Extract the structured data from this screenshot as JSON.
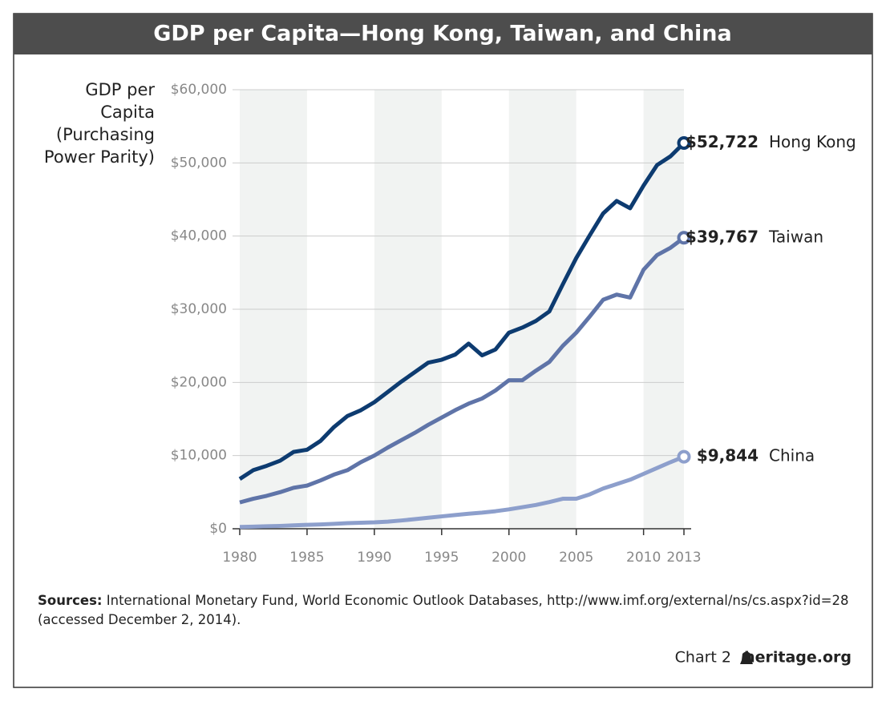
{
  "chart_data": {
    "type": "line",
    "title": "GDP per Capita—Hong Kong, Taiwan, and China",
    "ylabel": [
      "GDP per",
      "Capita",
      "(Purchasing",
      "Power Parity)"
    ],
    "x": [
      1980,
      1981,
      1982,
      1983,
      1984,
      1985,
      1986,
      1987,
      1988,
      1989,
      1990,
      1991,
      1992,
      1993,
      1994,
      1995,
      1996,
      1997,
      1998,
      1999,
      2000,
      2001,
      2002,
      2003,
      2004,
      2005,
      2006,
      2007,
      2008,
      2009,
      2010,
      2011,
      2012,
      2013
    ],
    "xlim": [
      1980,
      2013
    ],
    "xticks": [
      1980,
      1985,
      1990,
      1995,
      2000,
      2005,
      2010,
      2013
    ],
    "ylim": [
      0,
      60000
    ],
    "yticks": [
      {
        "value": 0,
        "label": "$0"
      },
      {
        "value": 10000,
        "label": "$10,000"
      },
      {
        "value": 20000,
        "label": "$20,000"
      },
      {
        "value": 30000,
        "label": "$30,000"
      },
      {
        "value": 40000,
        "label": "$40,000"
      },
      {
        "value": 50000,
        "label": "$50,000"
      },
      {
        "value": 60000,
        "label": "$60,000"
      }
    ],
    "grid": true,
    "series": [
      {
        "name": "Hong Kong",
        "color": "#0d3b70",
        "values": [
          6800,
          8000,
          8600,
          9300,
          10500,
          10800,
          12000,
          13900,
          15400,
          16200,
          17300,
          18700,
          20100,
          21400,
          22700,
          23100,
          23800,
          25300,
          23700,
          24500,
          26800,
          27500,
          28400,
          29700,
          33400,
          37000,
          40100,
          43100,
          44800,
          43800,
          46900,
          49700,
          50900,
          52722
        ],
        "value_labels": [
          null,
          null,
          null,
          null,
          null,
          null,
          null,
          null,
          null,
          null,
          null,
          null,
          null,
          null,
          null,
          null,
          null,
          null,
          null,
          null,
          null,
          null,
          null,
          null,
          null,
          null,
          null,
          null,
          null,
          null,
          null,
          null,
          null,
          "$52,722"
        ]
      },
      {
        "name": "Taiwan",
        "color": "#5f74a8",
        "values": [
          3600,
          4100,
          4500,
          5000,
          5600,
          5900,
          6600,
          7400,
          8000,
          9100,
          10000,
          11100,
          12100,
          13100,
          14200,
          15200,
          16200,
          17100,
          17800,
          18900,
          20300,
          20300,
          21600,
          22800,
          25000,
          26800,
          29000,
          31300,
          32000,
          31600,
          35400,
          37400,
          38400,
          39767
        ],
        "value_labels": [
          null,
          null,
          null,
          null,
          null,
          null,
          null,
          null,
          null,
          null,
          null,
          null,
          null,
          null,
          null,
          null,
          null,
          null,
          null,
          null,
          null,
          null,
          null,
          null,
          null,
          null,
          null,
          null,
          null,
          null,
          null,
          null,
          null,
          "$39,767"
        ]
      },
      {
        "name": "China",
        "color": "#8d9fcc",
        "values": [
          250,
          290,
          340,
          390,
          470,
          540,
          590,
          670,
          760,
          820,
          870,
          970,
          1130,
          1310,
          1510,
          1690,
          1870,
          2050,
          2200,
          2400,
          2650,
          2950,
          3250,
          3650,
          4100,
          4100,
          4700,
          5500,
          6100,
          6700,
          7500,
          8300,
          9100,
          9844
        ],
        "value_labels": [
          null,
          null,
          null,
          null,
          null,
          null,
          null,
          null,
          null,
          null,
          null,
          null,
          null,
          null,
          null,
          null,
          null,
          null,
          null,
          null,
          null,
          null,
          null,
          null,
          null,
          null,
          null,
          null,
          null,
          null,
          null,
          null,
          null,
          "$9,844"
        ]
      }
    ],
    "source_label": "Sources:",
    "source": "International Monetary Fund, World Economic Outlook Databases, http://www.imf.org/external/ns/cs.aspx?id=28 (accessed December 2, 2014).",
    "chart_label": "Chart 2",
    "publisher": "heritage.org"
  }
}
